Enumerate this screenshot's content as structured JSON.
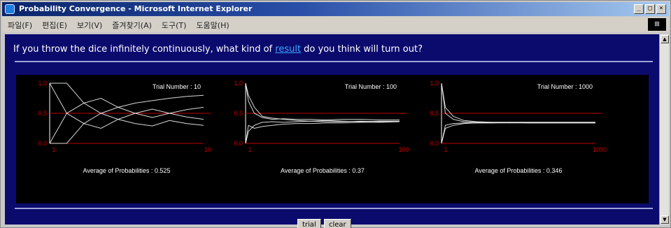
{
  "window": {
    "title": "Probability Convergence - Microsoft Internet Explorer",
    "menu": [
      "파일(F)",
      "편집(E)",
      "보기(V)",
      "즐겨찾기(A)",
      "도구(T)",
      "도움말(H)"
    ],
    "controls": [
      "_",
      "□",
      "×"
    ]
  },
  "page": {
    "question_before": "If you throw the dice infinitely continuously, what kind of ",
    "question_link": "result",
    "question_after": " do you think will turn out?"
  },
  "charts": [
    {
      "trial_label": "Trial Number : 10",
      "x_ticks": [
        "1",
        "10"
      ],
      "y_ticks": [
        "1.0",
        "0.5",
        "0.0"
      ],
      "average_label": "Average of Probabilities : 0.525",
      "n": 10,
      "series": [
        [
          0,
          0,
          0.33,
          0.5,
          0.6,
          0.67,
          0.71,
          0.75,
          0.78,
          0.8
        ],
        [
          1,
          0.5,
          0.33,
          0.25,
          0.4,
          0.5,
          0.57,
          0.5,
          0.56,
          0.6
        ],
        [
          0,
          0.5,
          0.67,
          0.75,
          0.6,
          0.5,
          0.43,
          0.5,
          0.44,
          0.4
        ],
        [
          1,
          1,
          0.67,
          0.5,
          0.4,
          0.33,
          0.29,
          0.38,
          0.33,
          0.3
        ]
      ]
    },
    {
      "trial_label": "Trial Number : 100",
      "x_ticks": [
        "1",
        "100"
      ],
      "y_ticks": [
        "1.0",
        "0.5",
        "0.0"
      ],
      "average_label": "Average of Probabilities : 0.37",
      "n": 100,
      "series": [
        [
          1,
          0.8,
          0.6,
          0.45,
          0.42,
          0.4,
          0.38,
          0.37,
          0.38,
          0.37,
          0.36,
          0.37,
          0.37
        ],
        [
          0,
          0.3,
          0.25,
          0.28,
          0.3,
          0.32,
          0.33,
          0.33,
          0.34,
          0.34,
          0.35,
          0.35,
          0.36
        ],
        [
          1,
          0.7,
          0.5,
          0.43,
          0.4,
          0.41,
          0.4,
          0.4,
          0.39,
          0.4,
          0.4,
          0.39,
          0.39
        ],
        [
          0,
          0.2,
          0.3,
          0.35,
          0.36,
          0.35,
          0.36,
          0.37,
          0.36,
          0.36,
          0.37,
          0.36,
          0.36
        ]
      ]
    },
    {
      "trial_label": "Trial Number : 1000",
      "x_ticks": [
        "1",
        "1000"
      ],
      "y_ticks": [
        "1.0",
        "0.5",
        "0.0"
      ],
      "average_label": "Average of Probabilities : 0.346",
      "n": 1000,
      "series": [
        [
          1,
          0.6,
          0.45,
          0.38,
          0.36,
          0.35,
          0.35,
          0.35,
          0.35,
          0.35,
          0.35
        ],
        [
          0,
          0.25,
          0.3,
          0.33,
          0.34,
          0.34,
          0.34,
          0.34,
          0.34,
          0.34,
          0.34
        ],
        [
          1,
          0.5,
          0.4,
          0.36,
          0.35,
          0.35,
          0.35,
          0.35,
          0.35,
          0.35,
          0.35
        ],
        [
          0,
          0.3,
          0.33,
          0.34,
          0.34,
          0.34,
          0.35,
          0.34,
          0.34,
          0.34,
          0.34
        ]
      ]
    }
  ],
  "buttons": {
    "trial_label": "trial",
    "clear_label": "clear"
  },
  "colors": {
    "content_bg": "#0b0b6e",
    "panel_bg": "#000000",
    "reference_line": "#c00000",
    "series_line": "#f0f0f0",
    "link": "#38a8ff"
  }
}
